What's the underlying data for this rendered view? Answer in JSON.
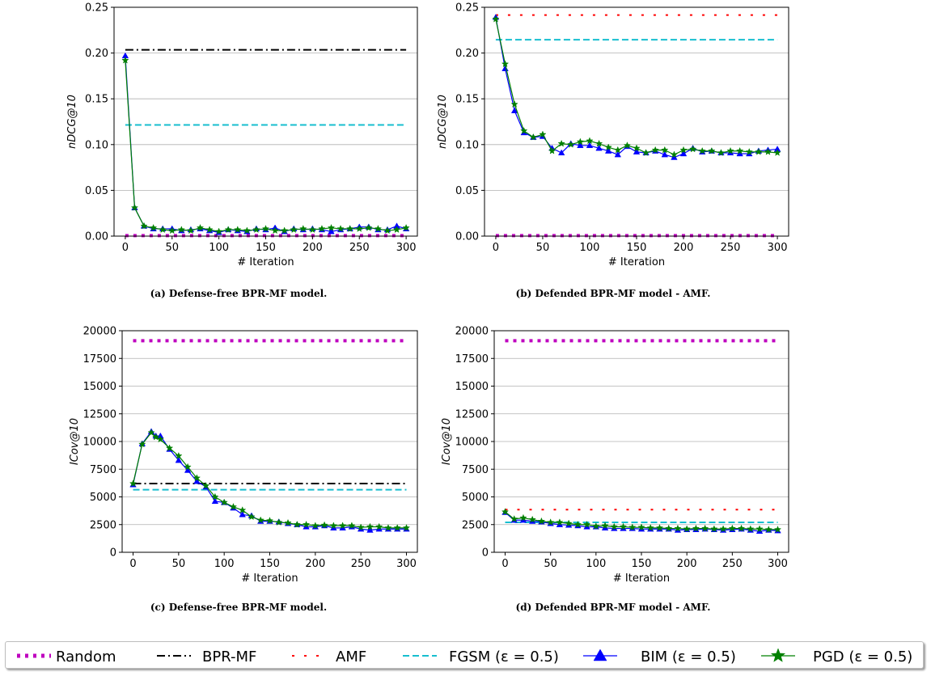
{
  "styles": {
    "Random": {
      "color": "#bf00bf",
      "dash": "4,6",
      "width": 4,
      "marker": "none"
    },
    "BPR-MF": {
      "color": "#000000",
      "dash": "10,4,2,4",
      "width": 2,
      "marker": "none"
    },
    "AMF": {
      "color": "#ff0000",
      "dash": "3,12",
      "width": 2,
      "marker": "none"
    },
    "FGSM": {
      "color": "#17becf",
      "dash": "8,4",
      "width": 2,
      "marker": "none"
    },
    "BIM": {
      "color": "#0000ff",
      "dash": "",
      "width": 1.2,
      "marker": "triangle"
    },
    "PGD": {
      "color": "#008000",
      "dash": "",
      "width": 1.2,
      "marker": "star"
    }
  },
  "legend": [
    {
      "key": "Random",
      "label": "Random"
    },
    {
      "key": "BPR-MF",
      "label": "BPR-MF"
    },
    {
      "key": "AMF",
      "label": "AMF"
    },
    {
      "key": "FGSM",
      "label": "FGSM (ε = 0.5)"
    },
    {
      "key": "BIM",
      "label": "BIM (ε = 0.5)"
    },
    {
      "key": "PGD",
      "label": "PGD (ε = 0.5)"
    }
  ],
  "chart_data": [
    {
      "type": "line",
      "caption": "(a) Defense-free BPR-MF model.",
      "xlabel": "# Iteration",
      "ylabel": "nDCG@10",
      "xlim": [
        -12,
        312
      ],
      "ylim": [
        0,
        0.25
      ],
      "xticks": [
        0,
        50,
        100,
        150,
        200,
        250,
        300
      ],
      "yticks": [
        0.0,
        0.05,
        0.1,
        0.15,
        0.2,
        0.25
      ],
      "ytick_labels": [
        "0.00",
        "0.05",
        "0.10",
        "0.15",
        "0.20",
        "0.25"
      ],
      "grid": "horizontal",
      "hlines": [
        {
          "key": "Random",
          "y": 0.0005
        },
        {
          "key": "BPR-MF",
          "y": 0.2035
        },
        {
          "key": "FGSM",
          "y": 0.1215
        }
      ],
      "series": [
        {
          "key": "BIM",
          "x": [
            0,
            10,
            20,
            30,
            40,
            50,
            60,
            70,
            80,
            90,
            100,
            110,
            120,
            130,
            140,
            150,
            160,
            170,
            180,
            190,
            200,
            210,
            220,
            230,
            240,
            250,
            260,
            270,
            280,
            290,
            300
          ],
          "y": [
            0.197,
            0.031,
            0.011,
            0.008,
            0.008,
            0.008,
            0.006,
            0.007,
            0.008,
            0.006,
            0.004,
            0.007,
            0.006,
            0.005,
            0.008,
            0.007,
            0.009,
            0.005,
            0.008,
            0.007,
            0.008,
            0.007,
            0.005,
            0.007,
            0.008,
            0.01,
            0.01,
            0.007,
            0.007,
            0.011,
            0.008
          ]
        },
        {
          "key": "PGD",
          "x": [
            0,
            10,
            20,
            30,
            40,
            50,
            60,
            70,
            80,
            90,
            100,
            110,
            120,
            130,
            140,
            150,
            160,
            170,
            180,
            190,
            200,
            210,
            220,
            230,
            240,
            250,
            260,
            270,
            280,
            290,
            300
          ],
          "y": [
            0.192,
            0.031,
            0.011,
            0.009,
            0.007,
            0.006,
            0.007,
            0.006,
            0.009,
            0.007,
            0.005,
            0.007,
            0.007,
            0.006,
            0.007,
            0.008,
            0.006,
            0.006,
            0.007,
            0.008,
            0.007,
            0.008,
            0.009,
            0.008,
            0.008,
            0.008,
            0.009,
            0.008,
            0.006,
            0.007,
            0.009
          ]
        }
      ]
    },
    {
      "type": "line",
      "caption": "(b) Defended BPR-MF model - AMF.",
      "xlabel": "# Iteration",
      "ylabel": "nDCG@10",
      "xlim": [
        -12,
        312
      ],
      "ylim": [
        0,
        0.25
      ],
      "xticks": [
        0,
        50,
        100,
        150,
        200,
        250,
        300
      ],
      "yticks": [
        0.0,
        0.05,
        0.1,
        0.15,
        0.2,
        0.25
      ],
      "ytick_labels": [
        "0.00",
        "0.05",
        "0.10",
        "0.15",
        "0.20",
        "0.25"
      ],
      "grid": "horizontal",
      "hlines": [
        {
          "key": "Random",
          "y": 0.0005
        },
        {
          "key": "AMF",
          "y": 0.2415
        },
        {
          "key": "FGSM",
          "y": 0.2145
        }
      ],
      "series": [
        {
          "key": "BIM",
          "x": [
            0,
            10,
            20,
            30,
            40,
            50,
            60,
            70,
            80,
            90,
            100,
            110,
            120,
            130,
            140,
            150,
            160,
            170,
            180,
            190,
            200,
            210,
            220,
            230,
            240,
            250,
            260,
            270,
            280,
            290,
            300
          ],
          "y": [
            0.239,
            0.183,
            0.137,
            0.113,
            0.108,
            0.109,
            0.096,
            0.091,
            0.101,
            0.099,
            0.099,
            0.096,
            0.093,
            0.089,
            0.098,
            0.092,
            0.091,
            0.093,
            0.089,
            0.086,
            0.09,
            0.096,
            0.092,
            0.093,
            0.091,
            0.091,
            0.09,
            0.09,
            0.093,
            0.094,
            0.095
          ]
        },
        {
          "key": "PGD",
          "x": [
            0,
            10,
            20,
            30,
            40,
            50,
            60,
            70,
            80,
            90,
            100,
            110,
            120,
            130,
            140,
            150,
            160,
            170,
            180,
            190,
            200,
            210,
            220,
            230,
            240,
            250,
            260,
            270,
            280,
            290,
            300
          ],
          "y": [
            0.237,
            0.188,
            0.144,
            0.115,
            0.108,
            0.111,
            0.093,
            0.101,
            0.1,
            0.103,
            0.104,
            0.101,
            0.097,
            0.094,
            0.099,
            0.096,
            0.091,
            0.094,
            0.094,
            0.089,
            0.094,
            0.095,
            0.093,
            0.093,
            0.091,
            0.093,
            0.093,
            0.092,
            0.092,
            0.092,
            0.091
          ]
        }
      ]
    },
    {
      "type": "line",
      "caption": "(c) Defense-free BPR-MF model.",
      "xlabel": "# Iteration",
      "ylabel": "ICov@10",
      "xlim": [
        -12,
        312
      ],
      "ylim": [
        0,
        20000
      ],
      "xticks": [
        0,
        50,
        100,
        150,
        200,
        250,
        300
      ],
      "yticks": [
        0,
        2500,
        5000,
        7500,
        10000,
        12500,
        15000,
        17500,
        20000
      ],
      "ytick_labels": [
        "0",
        "2500",
        "5000",
        "7500",
        "10000",
        "12500",
        "15000",
        "17500",
        "20000"
      ],
      "grid": "horizontal",
      "hlines": [
        {
          "key": "Random",
          "y": 19100
        },
        {
          "key": "BPR-MF",
          "y": 6200
        },
        {
          "key": "FGSM",
          "y": 5650
        }
      ],
      "series": [
        {
          "key": "BIM",
          "x": [
            0,
            10,
            20,
            25,
            30,
            40,
            50,
            60,
            70,
            80,
            90,
            100,
            110,
            120,
            130,
            140,
            150,
            160,
            170,
            180,
            190,
            200,
            210,
            220,
            230,
            240,
            250,
            260,
            270,
            280,
            290,
            300
          ],
          "y": [
            6100,
            9800,
            10900,
            10500,
            10500,
            9300,
            8300,
            7400,
            6400,
            5900,
            4600,
            4500,
            4000,
            3400,
            3300,
            2800,
            2800,
            2750,
            2600,
            2500,
            2300,
            2300,
            2400,
            2200,
            2200,
            2300,
            2100,
            2000,
            2100,
            2100,
            2100,
            2100
          ]
        },
        {
          "key": "PGD",
          "x": [
            0,
            10,
            20,
            25,
            30,
            40,
            50,
            60,
            70,
            80,
            90,
            100,
            110,
            120,
            130,
            140,
            150,
            160,
            170,
            180,
            190,
            200,
            210,
            220,
            230,
            240,
            250,
            260,
            270,
            280,
            290,
            300
          ],
          "y": [
            6200,
            9750,
            10800,
            10400,
            10200,
            9400,
            8700,
            7700,
            6700,
            6000,
            5000,
            4500,
            4100,
            3800,
            3200,
            2900,
            2850,
            2700,
            2650,
            2500,
            2500,
            2400,
            2450,
            2400,
            2400,
            2400,
            2250,
            2300,
            2300,
            2200,
            2200,
            2200
          ]
        }
      ]
    },
    {
      "type": "line",
      "caption": "(d) Defended BPR-MF model - AMF.",
      "xlabel": "# Iteration",
      "ylabel": "ICov@10",
      "xlim": [
        -12,
        312
      ],
      "ylim": [
        0,
        20000
      ],
      "xticks": [
        0,
        50,
        100,
        150,
        200,
        250,
        300
      ],
      "yticks": [
        0,
        2500,
        5000,
        7500,
        10000,
        12500,
        15000,
        17500,
        20000
      ],
      "ytick_labels": [
        "0",
        "2500",
        "5000",
        "7500",
        "10000",
        "12500",
        "15000",
        "17500",
        "20000"
      ],
      "grid": "horizontal",
      "hlines": [
        {
          "key": "Random",
          "y": 19100
        },
        {
          "key": "AMF",
          "y": 3850
        },
        {
          "key": "FGSM",
          "y": 2700
        }
      ],
      "series": [
        {
          "key": "BIM",
          "x": [
            0,
            10,
            20,
            30,
            40,
            50,
            60,
            70,
            80,
            90,
            100,
            110,
            120,
            130,
            140,
            150,
            160,
            170,
            180,
            190,
            200,
            210,
            220,
            230,
            240,
            250,
            260,
            270,
            280,
            290,
            300
          ],
          "y": [
            3600,
            2900,
            2900,
            2800,
            2750,
            2600,
            2500,
            2450,
            2400,
            2300,
            2300,
            2200,
            2150,
            2150,
            2150,
            2100,
            2100,
            2100,
            2100,
            2000,
            2050,
            2050,
            2100,
            2050,
            2000,
            2050,
            2100,
            2000,
            1900,
            2000,
            1950
          ]
        },
        {
          "key": "PGD",
          "x": [
            0,
            10,
            20,
            30,
            40,
            50,
            60,
            70,
            80,
            90,
            100,
            110,
            120,
            130,
            140,
            150,
            160,
            170,
            180,
            190,
            200,
            210,
            220,
            230,
            240,
            250,
            260,
            270,
            280,
            290,
            300
          ],
          "y": [
            3650,
            3000,
            3100,
            2950,
            2800,
            2700,
            2700,
            2600,
            2500,
            2500,
            2350,
            2400,
            2300,
            2300,
            2250,
            2250,
            2200,
            2200,
            2150,
            2150,
            2100,
            2150,
            2150,
            2100,
            2100,
            2150,
            2150,
            2100,
            2100,
            2050,
            2050
          ]
        }
      ]
    }
  ]
}
